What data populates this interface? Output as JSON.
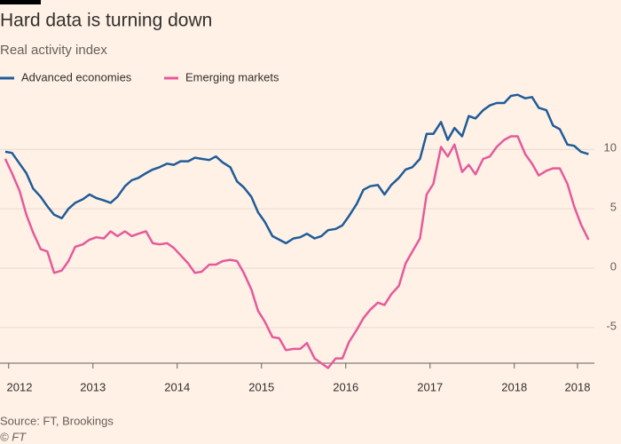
{
  "chart_data": {
    "type": "line",
    "title": "Hard data is turning down",
    "subtitle": "Real activity index",
    "source": "Source: FT, Brookings",
    "credit": "© FT",
    "x": [
      2011.96,
      2012.04,
      2012.13,
      2012.21,
      2012.29,
      2012.38,
      2012.46,
      2012.54,
      2012.63,
      2012.71,
      2012.79,
      2012.88,
      2012.96,
      2013.04,
      2013.13,
      2013.21,
      2013.29,
      2013.38,
      2013.46,
      2013.54,
      2013.63,
      2013.71,
      2013.79,
      2013.88,
      2013.96,
      2014.04,
      2014.13,
      2014.21,
      2014.29,
      2014.38,
      2014.46,
      2014.54,
      2014.63,
      2014.71,
      2014.79,
      2014.88,
      2014.96,
      2015.04,
      2015.13,
      2015.21,
      2015.29,
      2015.38,
      2015.46,
      2015.54,
      2015.63,
      2015.71,
      2015.79,
      2015.88,
      2015.96,
      2016.04,
      2016.13,
      2016.21,
      2016.29,
      2016.38,
      2016.46,
      2016.54,
      2016.63,
      2016.71,
      2016.79,
      2016.88,
      2016.96,
      2017.04,
      2017.13,
      2017.21,
      2017.29,
      2017.38,
      2017.46,
      2017.54,
      2017.63,
      2017.71,
      2017.79,
      2017.88,
      2017.96,
      2018.04,
      2018.13,
      2018.21,
      2018.29,
      2018.38,
      2018.46,
      2018.54,
      2018.63,
      2018.71,
      2018.79,
      2018.88
    ],
    "series": [
      {
        "name": "Advanced economies",
        "color": "#1f5c99",
        "values": [
          9.8,
          9.7,
          8.8,
          8.0,
          6.7,
          6.0,
          5.2,
          4.5,
          4.2,
          5.0,
          5.5,
          5.8,
          6.2,
          5.9,
          5.7,
          5.5,
          6.0,
          6.9,
          7.4,
          7.6,
          8.0,
          8.3,
          8.5,
          8.8,
          8.7,
          9.0,
          9.0,
          9.3,
          9.2,
          9.1,
          9.4,
          8.9,
          8.5,
          7.3,
          6.8,
          6.0,
          4.7,
          3.9,
          2.7,
          2.4,
          2.1,
          2.5,
          2.6,
          2.9,
          2.5,
          2.7,
          3.2,
          3.3,
          3.6,
          4.4,
          5.4,
          6.6,
          6.9,
          7.0,
          6.2,
          7.0,
          7.6,
          8.3,
          8.5,
          9.2,
          11.3,
          11.3,
          12.3,
          10.8,
          11.8,
          11.1,
          12.8,
          12.6,
          13.3,
          13.7,
          13.9,
          13.9,
          14.5,
          14.6,
          14.3,
          14.4,
          13.5,
          13.3,
          12.0,
          11.7,
          10.4,
          10.3,
          9.8,
          9.6
        ]
      },
      {
        "name": "Emerging markets",
        "color": "#e55a9c",
        "values": [
          9.2,
          8.0,
          6.5,
          4.5,
          3.0,
          1.6,
          1.4,
          -0.4,
          -0.2,
          0.6,
          1.8,
          2.0,
          2.4,
          2.6,
          2.5,
          3.1,
          2.7,
          3.1,
          2.7,
          2.9,
          3.1,
          2.1,
          2.0,
          2.1,
          1.7,
          1.1,
          0.4,
          -0.4,
          -0.3,
          0.3,
          0.3,
          0.6,
          0.7,
          0.6,
          -0.4,
          -1.8,
          -3.6,
          -4.5,
          -5.8,
          -5.9,
          -6.9,
          -6.8,
          -6.8,
          -6.3,
          -7.6,
          -8.0,
          -8.4,
          -7.6,
          -7.6,
          -6.2,
          -5.2,
          -4.2,
          -3.5,
          -2.9,
          -3.1,
          -2.2,
          -1.5,
          0.4,
          1.4,
          2.5,
          6.2,
          7.1,
          10.2,
          9.4,
          10.4,
          8.1,
          8.7,
          7.9,
          9.2,
          9.4,
          10.2,
          10.8,
          11.1,
          11.1,
          9.6,
          8.8,
          7.8,
          8.2,
          8.4,
          8.4,
          7.1,
          5.2,
          3.7,
          2.4
        ]
      }
    ],
    "xlim": [
      2011.95,
      2018.95
    ],
    "xticks": [
      2012,
      2013,
      2014,
      2015,
      2016,
      2017,
      2018,
      {
        "value": 2018.75,
        "label": "2018"
      }
    ],
    "ylim": [
      -8,
      14.5
    ],
    "yticks": [
      -5,
      0,
      5,
      10
    ],
    "grid": true
  }
}
